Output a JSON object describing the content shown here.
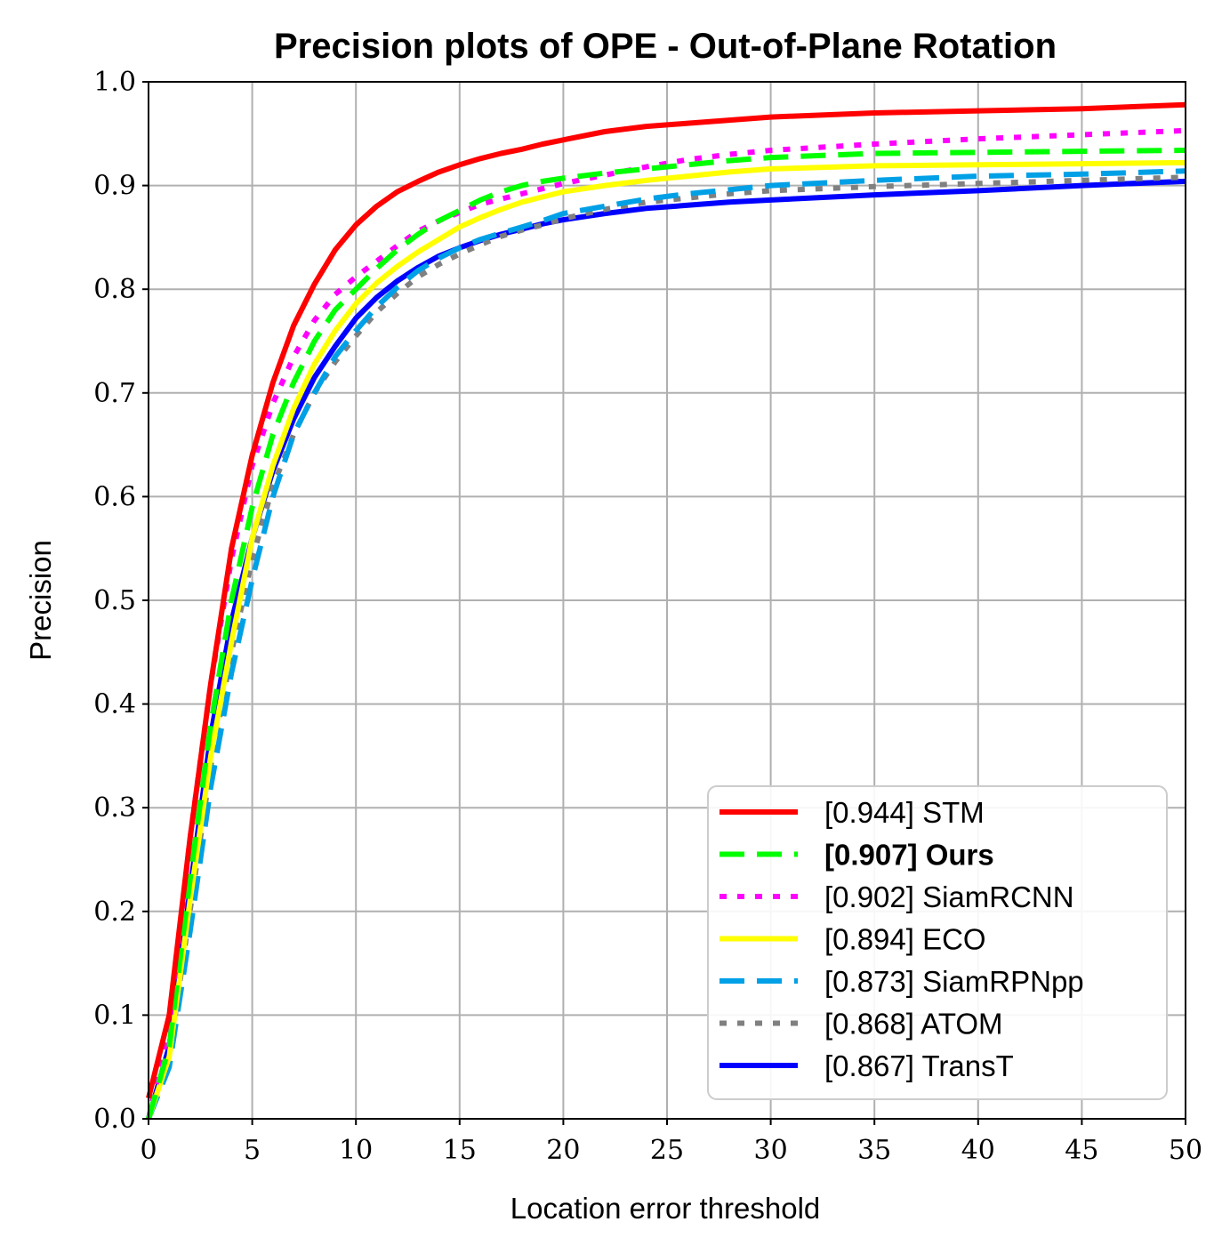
{
  "chart_data": {
    "type": "line",
    "title": "Precision plots of OPE - Out-of-Plane Rotation",
    "xlabel": "Location error threshold",
    "ylabel": "Precision",
    "xlim": [
      0,
      50
    ],
    "ylim": [
      0,
      1.0
    ],
    "xticks": [
      "0",
      "5",
      "10",
      "15",
      "20",
      "25",
      "30",
      "35",
      "40",
      "45",
      "50"
    ],
    "yticks": [
      "0.0",
      "0.1",
      "0.2",
      "0.3",
      "0.4",
      "0.5",
      "0.6",
      "0.7",
      "0.8",
      "0.9",
      "1.0"
    ],
    "grid": true,
    "legend_position": "lower-right",
    "x": [
      0,
      1,
      2,
      3,
      4,
      5,
      6,
      7,
      8,
      9,
      10,
      11,
      12,
      13,
      14,
      15,
      16,
      17,
      18,
      19,
      20,
      22,
      24,
      26,
      28,
      30,
      35,
      40,
      45,
      50
    ],
    "series": [
      {
        "name": "[0.944] STM",
        "color": "#ff0000",
        "dash": "solid",
        "bold": false,
        "values": [
          0.02,
          0.1,
          0.27,
          0.42,
          0.55,
          0.64,
          0.71,
          0.765,
          0.805,
          0.838,
          0.862,
          0.88,
          0.894,
          0.904,
          0.913,
          0.92,
          0.926,
          0.931,
          0.935,
          0.94,
          0.944,
          0.952,
          0.957,
          0.96,
          0.963,
          0.966,
          0.97,
          0.972,
          0.974,
          0.978
        ]
      },
      {
        "name": "[0.907] Ours",
        "color": "#00ff00",
        "dash": "dashed",
        "bold": true,
        "values": [
          0.0,
          0.07,
          0.23,
          0.38,
          0.5,
          0.59,
          0.66,
          0.71,
          0.75,
          0.78,
          0.8,
          0.82,
          0.838,
          0.853,
          0.866,
          0.876,
          0.886,
          0.894,
          0.9,
          0.904,
          0.907,
          0.912,
          0.916,
          0.92,
          0.924,
          0.927,
          0.931,
          0.932,
          0.933,
          0.934
        ]
      },
      {
        "name": "[0.902] SiamRCNN",
        "color": "#ff00ff",
        "dash": "dotted",
        "bold": false,
        "values": [
          0.0,
          0.09,
          0.27,
          0.42,
          0.54,
          0.63,
          0.69,
          0.735,
          0.77,
          0.795,
          0.812,
          0.827,
          0.842,
          0.856,
          0.866,
          0.874,
          0.882,
          0.887,
          0.892,
          0.897,
          0.902,
          0.91,
          0.918,
          0.925,
          0.93,
          0.934,
          0.94,
          0.945,
          0.949,
          0.953
        ]
      },
      {
        "name": "[0.894] ECO",
        "color": "#ffff00",
        "dash": "solid",
        "bold": false,
        "values": [
          0.0,
          0.06,
          0.21,
          0.35,
          0.46,
          0.56,
          0.63,
          0.685,
          0.728,
          0.76,
          0.786,
          0.806,
          0.822,
          0.836,
          0.848,
          0.86,
          0.869,
          0.877,
          0.884,
          0.889,
          0.894,
          0.9,
          0.905,
          0.909,
          0.913,
          0.916,
          0.919,
          0.92,
          0.921,
          0.922
        ]
      },
      {
        "name": "[0.873] SiamRPNpp",
        "color": "#00a0e6",
        "dash": "dashed",
        "bold": false,
        "values": [
          0.0,
          0.05,
          0.18,
          0.32,
          0.43,
          0.52,
          0.6,
          0.66,
          0.7,
          0.735,
          0.76,
          0.783,
          0.802,
          0.818,
          0.83,
          0.84,
          0.848,
          0.854,
          0.86,
          0.866,
          0.873,
          0.88,
          0.887,
          0.892,
          0.896,
          0.9,
          0.905,
          0.909,
          0.911,
          0.914
        ]
      },
      {
        "name": "[0.868] ATOM",
        "color": "#808080",
        "dash": "dotted",
        "bold": false,
        "values": [
          0.0,
          0.06,
          0.2,
          0.34,
          0.45,
          0.54,
          0.61,
          0.66,
          0.7,
          0.73,
          0.755,
          0.778,
          0.796,
          0.812,
          0.824,
          0.834,
          0.843,
          0.851,
          0.857,
          0.862,
          0.868,
          0.877,
          0.884,
          0.888,
          0.892,
          0.895,
          0.899,
          0.902,
          0.905,
          0.908
        ]
      },
      {
        "name": "[0.867] TransT",
        "color": "#0000ff",
        "dash": "solid",
        "bold": false,
        "values": [
          0.0,
          0.07,
          0.22,
          0.37,
          0.48,
          0.56,
          0.625,
          0.675,
          0.715,
          0.745,
          0.772,
          0.792,
          0.808,
          0.821,
          0.832,
          0.84,
          0.847,
          0.853,
          0.858,
          0.863,
          0.867,
          0.873,
          0.878,
          0.881,
          0.884,
          0.886,
          0.891,
          0.895,
          0.9,
          0.904
        ]
      }
    ]
  }
}
